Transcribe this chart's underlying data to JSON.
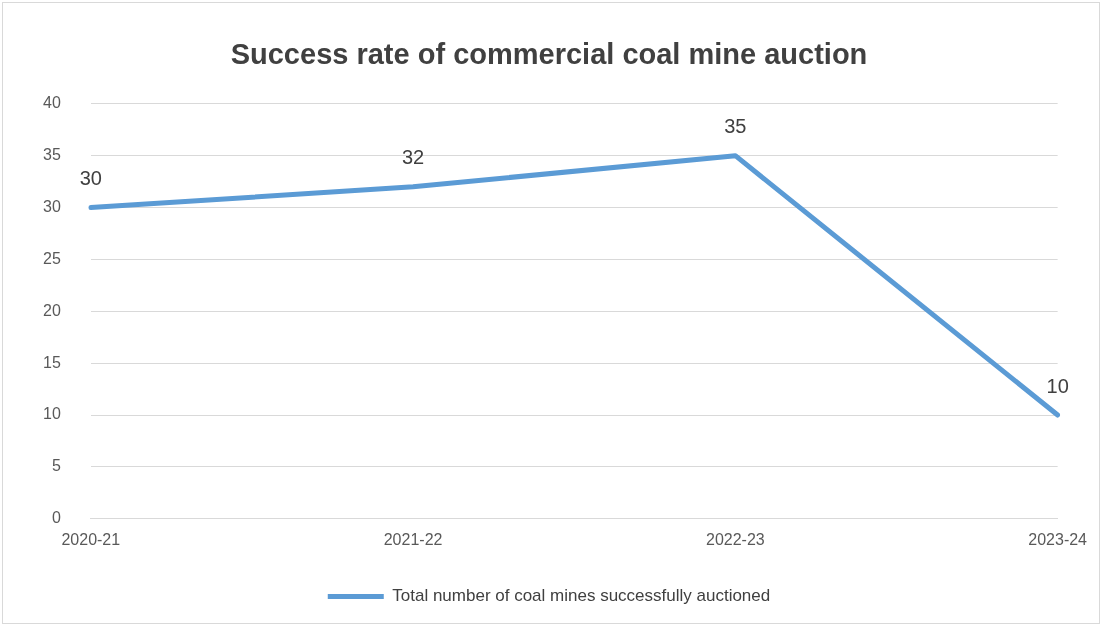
{
  "chart_data": {
    "type": "line",
    "title": "Success rate of commercial coal mine auction",
    "categories": [
      "2020-21",
      "2021-22",
      "2022-23",
      "2023-24"
    ],
    "series": [
      {
        "name": "Total number of coal mines successfully auctioned",
        "color": "#5b9bd5",
        "values": [
          30,
          32,
          35,
          10
        ]
      }
    ],
    "ylim": [
      0,
      40
    ],
    "yticks": [
      0,
      5,
      10,
      15,
      20,
      25,
      30,
      35,
      40
    ],
    "grid": "y",
    "legend": "bottom",
    "data_labels": true
  }
}
